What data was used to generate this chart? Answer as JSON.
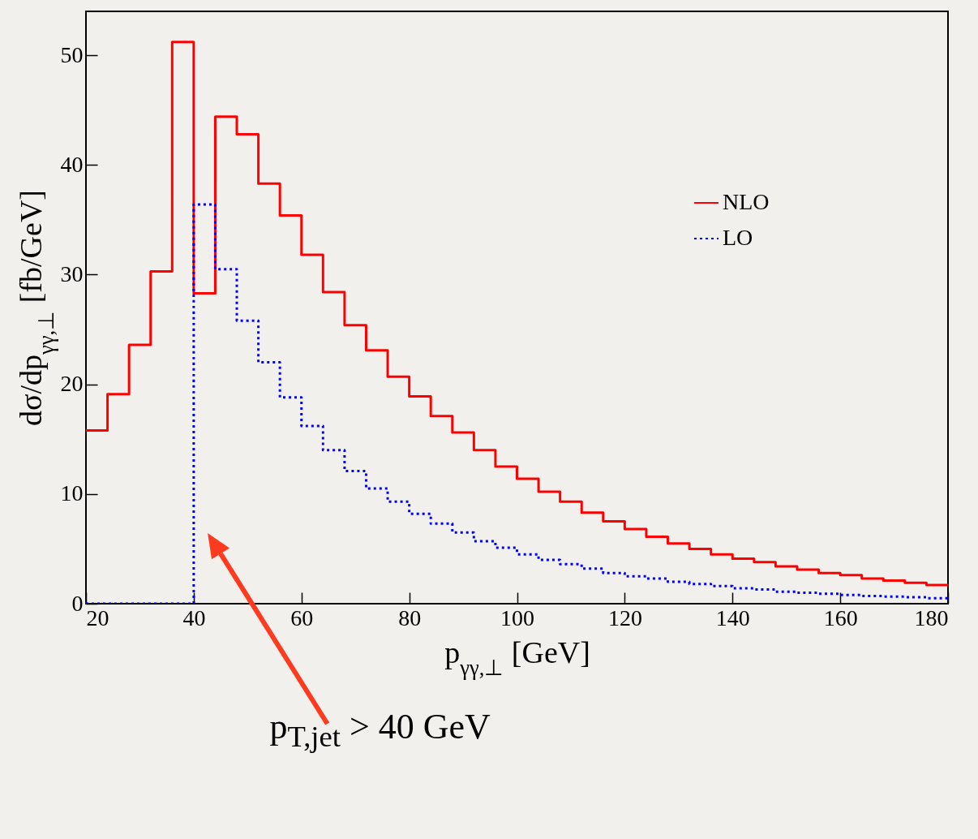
{
  "chart_data": {
    "type": "histogram",
    "xlabel": "p$_{γγ,⊥}$ [GeV]",
    "ylabel": "dσ/dp$_{γγ,⊥}$ [fb/GeV]",
    "bins": [
      20,
      24,
      28,
      32,
      36,
      40,
      44,
      48,
      52,
      56,
      60,
      64,
      68,
      72,
      76,
      80,
      84,
      88,
      92,
      96,
      100,
      104,
      108,
      112,
      116,
      120,
      124,
      128,
      132,
      136,
      140,
      144,
      148,
      152,
      156,
      160,
      164,
      168,
      172,
      176,
      180
    ],
    "series": [
      {
        "name": "NLO",
        "color": "#ff0000",
        "line_style": "solid",
        "values": [
          15.8,
          19.1,
          23.6,
          30.3,
          51.2,
          28.3,
          44.4,
          42.8,
          38.3,
          35.4,
          31.8,
          28.4,
          25.4,
          23.1,
          20.7,
          18.9,
          17.1,
          15.6,
          14.0,
          12.5,
          11.4,
          10.2,
          9.3,
          8.3,
          7.5,
          6.8,
          6.1,
          5.5,
          5.0,
          4.5,
          4.1,
          3.8,
          3.4,
          3.1,
          2.8,
          2.6,
          2.3,
          2.1,
          1.9,
          1.7
        ]
      },
      {
        "name": "LO",
        "color": "#0000ff",
        "line_style": "dotted",
        "values": [
          0,
          0,
          0,
          0,
          0,
          36.4,
          30.5,
          25.8,
          22.0,
          18.8,
          16.2,
          14.0,
          12.1,
          10.5,
          9.3,
          8.2,
          7.3,
          6.5,
          5.7,
          5.1,
          4.5,
          4.0,
          3.6,
          3.2,
          2.8,
          2.5,
          2.3,
          2.0,
          1.8,
          1.6,
          1.4,
          1.3,
          1.1,
          1.0,
          0.9,
          0.8,
          0.7,
          0.65,
          0.6,
          0.5
        ]
      }
    ],
    "xlim": [
      20,
      180
    ],
    "xticks": [
      20,
      40,
      60,
      80,
      100,
      120,
      140,
      160,
      180
    ],
    "ylim": [
      0,
      54
    ],
    "yticks": [
      0,
      10,
      20,
      30,
      40,
      50
    ],
    "grid": false,
    "legend": "top right",
    "annotations": [
      "p$_{T,jet}$ > 40 GeV"
    ]
  }
}
